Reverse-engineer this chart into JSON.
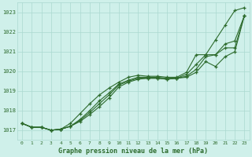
{
  "title": "Graphe pression niveau de la mer (hPa)",
  "bg_color": "#cff0ea",
  "grid_color": "#aad8d0",
  "line_color": "#2d6b2d",
  "xlim": [
    -0.5,
    23.5
  ],
  "ylim": [
    1016.5,
    1023.5
  ],
  "yticks": [
    1017,
    1018,
    1019,
    1020,
    1021,
    1022,
    1023
  ],
  "xticks": [
    0,
    1,
    2,
    3,
    4,
    5,
    6,
    7,
    8,
    9,
    10,
    11,
    12,
    13,
    14,
    15,
    16,
    17,
    18,
    19,
    20,
    21,
    22,
    23
  ],
  "series": [
    {
      "x": [
        0,
        1,
        2,
        3,
        4,
        5,
        6,
        7,
        8,
        9,
        10,
        11,
        12,
        13,
        14,
        15,
        16,
        17,
        18,
        19,
        20,
        21,
        22,
        23
      ],
      "y": [
        1017.35,
        1017.15,
        1017.15,
        1017.0,
        1017.05,
        1017.35,
        1017.85,
        1018.35,
        1018.8,
        1019.15,
        1019.45,
        1019.7,
        1019.8,
        1019.75,
        1019.75,
        1019.7,
        1019.7,
        1019.95,
        1020.85,
        1020.85,
        1021.6,
        1022.35,
        1023.1,
        1023.25
      ]
    },
    {
      "x": [
        0,
        1,
        2,
        3,
        4,
        5,
        6,
        7,
        8,
        9,
        10,
        11,
        12,
        13,
        14,
        15,
        16,
        17,
        18,
        19,
        20,
        21,
        22,
        23
      ],
      "y": [
        1017.35,
        1017.15,
        1017.15,
        1017.0,
        1017.05,
        1017.2,
        1017.55,
        1018.0,
        1018.5,
        1018.9,
        1019.35,
        1019.55,
        1019.7,
        1019.7,
        1019.7,
        1019.65,
        1019.65,
        1019.85,
        1020.35,
        1020.85,
        1020.85,
        1021.4,
        1021.55,
        1022.85
      ]
    },
    {
      "x": [
        0,
        1,
        2,
        3,
        4,
        5,
        6,
        7,
        8,
        9,
        10,
        11,
        12,
        13,
        14,
        15,
        16,
        17,
        18,
        19,
        20,
        21,
        22,
        23
      ],
      "y": [
        1017.35,
        1017.15,
        1017.15,
        1017.0,
        1017.05,
        1017.2,
        1017.5,
        1017.9,
        1018.35,
        1018.8,
        1019.3,
        1019.5,
        1019.65,
        1019.65,
        1019.65,
        1019.6,
        1019.65,
        1019.75,
        1020.1,
        1020.75,
        1020.85,
        1021.2,
        1021.2,
        1022.85
      ]
    },
    {
      "x": [
        0,
        1,
        2,
        3,
        4,
        5,
        6,
        7,
        8,
        9,
        10,
        11,
        12,
        13,
        14,
        15,
        16,
        17,
        18,
        19,
        20,
        21,
        22,
        23
      ],
      "y": [
        1017.35,
        1017.15,
        1017.15,
        1017.0,
        1017.05,
        1017.2,
        1017.45,
        1017.8,
        1018.2,
        1018.65,
        1019.2,
        1019.45,
        1019.6,
        1019.65,
        1019.65,
        1019.6,
        1019.65,
        1019.7,
        1019.95,
        1020.5,
        1020.25,
        1020.75,
        1021.0,
        1022.85
      ]
    }
  ]
}
